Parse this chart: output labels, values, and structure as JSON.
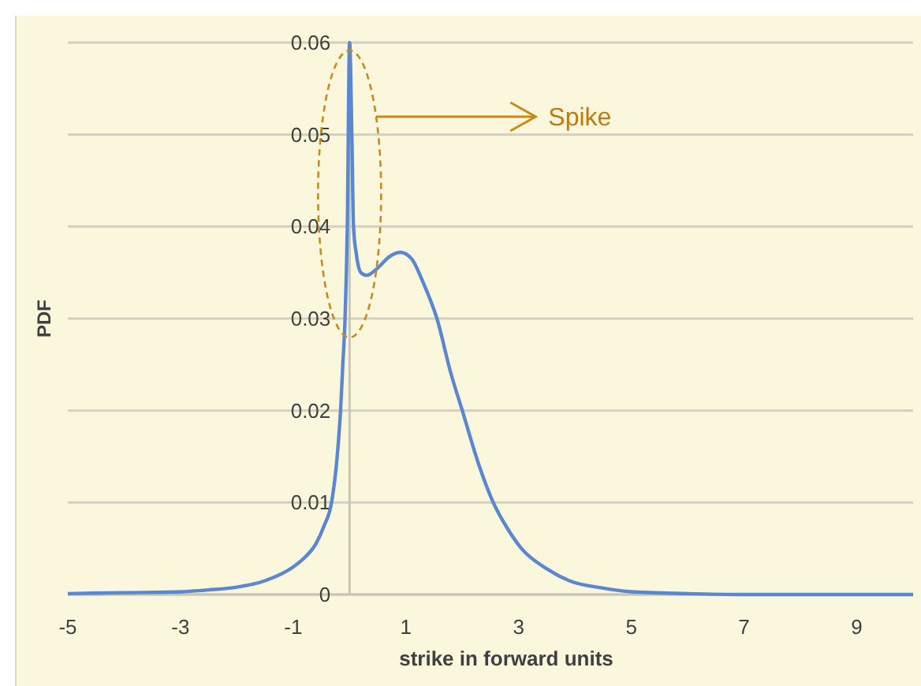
{
  "chart_data": {
    "type": "line",
    "xlabel": "strike in forward units",
    "ylabel": "PDF",
    "series": [
      {
        "color": "#5b87d0",
        "x": [
          -5,
          -4,
          -3,
          -2.5,
          -2,
          -1.5,
          -1,
          -0.8,
          -0.6,
          -0.45,
          -0.32,
          -0.22,
          -0.16,
          -0.12,
          -0.08,
          -0.04,
          0,
          0.04,
          0.07,
          0.12,
          0.2,
          0.3,
          0.5,
          0.7,
          0.9,
          1.1,
          1.3,
          1.55,
          1.8,
          2,
          2.3,
          2.55,
          2.8,
          3.05,
          3.5,
          3.9,
          4.5,
          5,
          6,
          7,
          8,
          9,
          10
        ],
        "values": [
          0.0001,
          0.0002,
          0.0003,
          0.0005,
          0.0008,
          0.0015,
          0.003,
          0.004,
          0.0055,
          0.0075,
          0.01,
          0.015,
          0.02,
          0.025,
          0.03,
          0.04,
          0.06,
          0.05,
          0.04,
          0.037,
          0.035,
          0.0347,
          0.0355,
          0.0367,
          0.0372,
          0.0365,
          0.034,
          0.03,
          0.024,
          0.02,
          0.014,
          0.01,
          0.0072,
          0.005,
          0.0028,
          0.0015,
          0.0007,
          0.0003,
          0.0001,
          0,
          0,
          0,
          0
        ]
      }
    ],
    "xlim": [
      -5,
      10
    ],
    "xticks": [
      -5,
      -3,
      -1,
      1,
      3,
      5,
      7,
      9
    ],
    "ylim": [
      0,
      0.06
    ],
    "yticks": [
      0,
      0.01,
      0.02,
      0.03,
      0.04,
      0.05,
      0.06
    ],
    "grid": "y",
    "marker": "none",
    "line_style": "solid",
    "annotations": [
      "Spike"
    ]
  }
}
